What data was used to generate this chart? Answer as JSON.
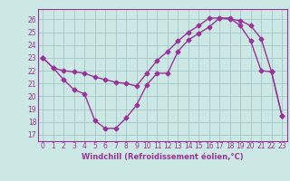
{
  "xlabel": "Windchill (Refroidissement éolien,°C)",
  "background_color": "#cce8e4",
  "grid_color": "#aacccc",
  "line_color": "#993399",
  "x_ticks": [
    0,
    1,
    2,
    3,
    4,
    5,
    6,
    7,
    8,
    9,
    10,
    11,
    12,
    13,
    14,
    15,
    16,
    17,
    18,
    19,
    20,
    21,
    22,
    23
  ],
  "y_ticks": [
    17,
    18,
    19,
    20,
    21,
    22,
    23,
    24,
    25,
    26
  ],
  "ylim": [
    16.5,
    26.8
  ],
  "xlim": [
    -0.5,
    23.5
  ],
  "line1_x": [
    0,
    1,
    2,
    3,
    4,
    5,
    6,
    7,
    8,
    9,
    10,
    11,
    12,
    13,
    14,
    15,
    16,
    17,
    18,
    19,
    20,
    21,
    22,
    23
  ],
  "line1_y": [
    23.0,
    22.2,
    21.3,
    20.5,
    20.2,
    18.1,
    17.5,
    17.5,
    18.3,
    19.3,
    20.9,
    21.8,
    21.8,
    23.5,
    24.4,
    24.9,
    25.4,
    26.1,
    26.1,
    25.5,
    24.3,
    22.0,
    21.9,
    18.5
  ],
  "line2_x": [
    0,
    1,
    2,
    3,
    4,
    5,
    6,
    7,
    8,
    9,
    10,
    11,
    12,
    13,
    14,
    15,
    16,
    17,
    18,
    19,
    20,
    21,
    22,
    23
  ],
  "line2_y": [
    23.0,
    22.2,
    22.0,
    21.9,
    21.8,
    21.5,
    21.3,
    21.1,
    21.0,
    20.8,
    21.8,
    22.8,
    23.5,
    24.3,
    25.0,
    25.5,
    26.1,
    26.1,
    26.0,
    25.9,
    25.5,
    24.5,
    21.9,
    18.5
  ],
  "marker": "D",
  "marker_size": 2.5,
  "line_width": 1.0,
  "tick_fontsize": 5.5,
  "xlabel_fontsize": 6.0
}
